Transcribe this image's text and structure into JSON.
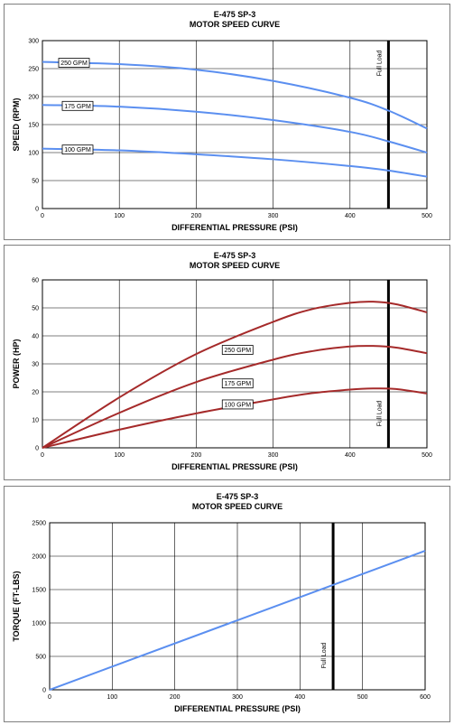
{
  "chart_data": [
    {
      "type": "line",
      "title": "E-475 SP-3",
      "subtitle": "MOTOR SPEED CURVE",
      "xlabel": "DIFFERENTIAL PRESSURE (PSI)",
      "ylabel": "SPEED (RPM)",
      "xlim": [
        0,
        500
      ],
      "ylim": [
        0,
        300
      ],
      "xticks": [
        0,
        100,
        200,
        300,
        400,
        500
      ],
      "yticks": [
        0,
        50,
        100,
        150,
        200,
        250,
        300
      ],
      "grid": true,
      "color": "#5b8ff0",
      "series": [
        {
          "name": "250 GPM",
          "x": [
            0,
            100,
            200,
            300,
            400,
            450,
            500
          ],
          "values": [
            262,
            258,
            248,
            228,
            198,
            175,
            143
          ]
        },
        {
          "name": "175 GPM",
          "x": [
            0,
            100,
            200,
            300,
            400,
            450,
            500
          ],
          "values": [
            185,
            182,
            173,
            158,
            137,
            120,
            100
          ]
        },
        {
          "name": "100 GPM",
          "x": [
            0,
            100,
            200,
            300,
            400,
            450,
            500
          ],
          "values": [
            107,
            104,
            97,
            88,
            76,
            68,
            57
          ]
        }
      ],
      "annotations": [
        {
          "text": "Full Load",
          "x": 450
        }
      ]
    },
    {
      "type": "line",
      "title": "E-475 SP-3",
      "subtitle": "MOTOR SPEED CURVE",
      "xlabel": "DIFFERENTIAL PRESSURE (PSI)",
      "ylabel": "POWER (HP)",
      "xlim": [
        0,
        500
      ],
      "ylim": [
        0,
        60
      ],
      "xticks": [
        0,
        100,
        200,
        300,
        400,
        500
      ],
      "yticks": [
        0,
        10,
        20,
        30,
        40,
        50,
        60
      ],
      "grid": true,
      "color": "#a52a2a",
      "series": [
        {
          "name": "250 GPM",
          "x": [
            0,
            100,
            200,
            300,
            350,
            400,
            430,
            460,
            500
          ],
          "values": [
            0,
            18,
            33.5,
            45,
            49.5,
            51.8,
            52.2,
            51.3,
            48.4
          ]
        },
        {
          "name": "175 GPM",
          "x": [
            0,
            100,
            200,
            300,
            350,
            400,
            430,
            460,
            500
          ],
          "values": [
            0,
            12.5,
            23.5,
            31.5,
            34.5,
            36.2,
            36.4,
            35.8,
            33.8
          ]
        },
        {
          "name": "100 GPM",
          "x": [
            0,
            100,
            200,
            300,
            350,
            400,
            430,
            460,
            500
          ],
          "values": [
            0,
            6.5,
            12.3,
            17.3,
            19.5,
            20.8,
            21.2,
            21,
            19.4
          ]
        }
      ],
      "annotations": [
        {
          "text": "Full Load",
          "x": 450
        }
      ]
    },
    {
      "type": "line",
      "title": "E-475 SP-3",
      "subtitle": "MOTOR SPEED CURVE",
      "xlabel": "DIFFERENTIAL PRESSURE (PSI)",
      "ylabel": "TORQUE (FT-LBS)",
      "xlim": [
        0,
        600
      ],
      "ylim": [
        0,
        2500
      ],
      "xticks": [
        0,
        100,
        200,
        300,
        400,
        500,
        600
      ],
      "yticks": [
        0,
        500,
        1000,
        1500,
        2000,
        2500
      ],
      "grid": true,
      "color": "#5b8ff0",
      "series": [
        {
          "name": "",
          "x": [
            0,
            600
          ],
          "values": [
            0,
            2080
          ]
        }
      ],
      "annotations": [
        {
          "text": "Full Load",
          "x": 453
        }
      ]
    }
  ]
}
